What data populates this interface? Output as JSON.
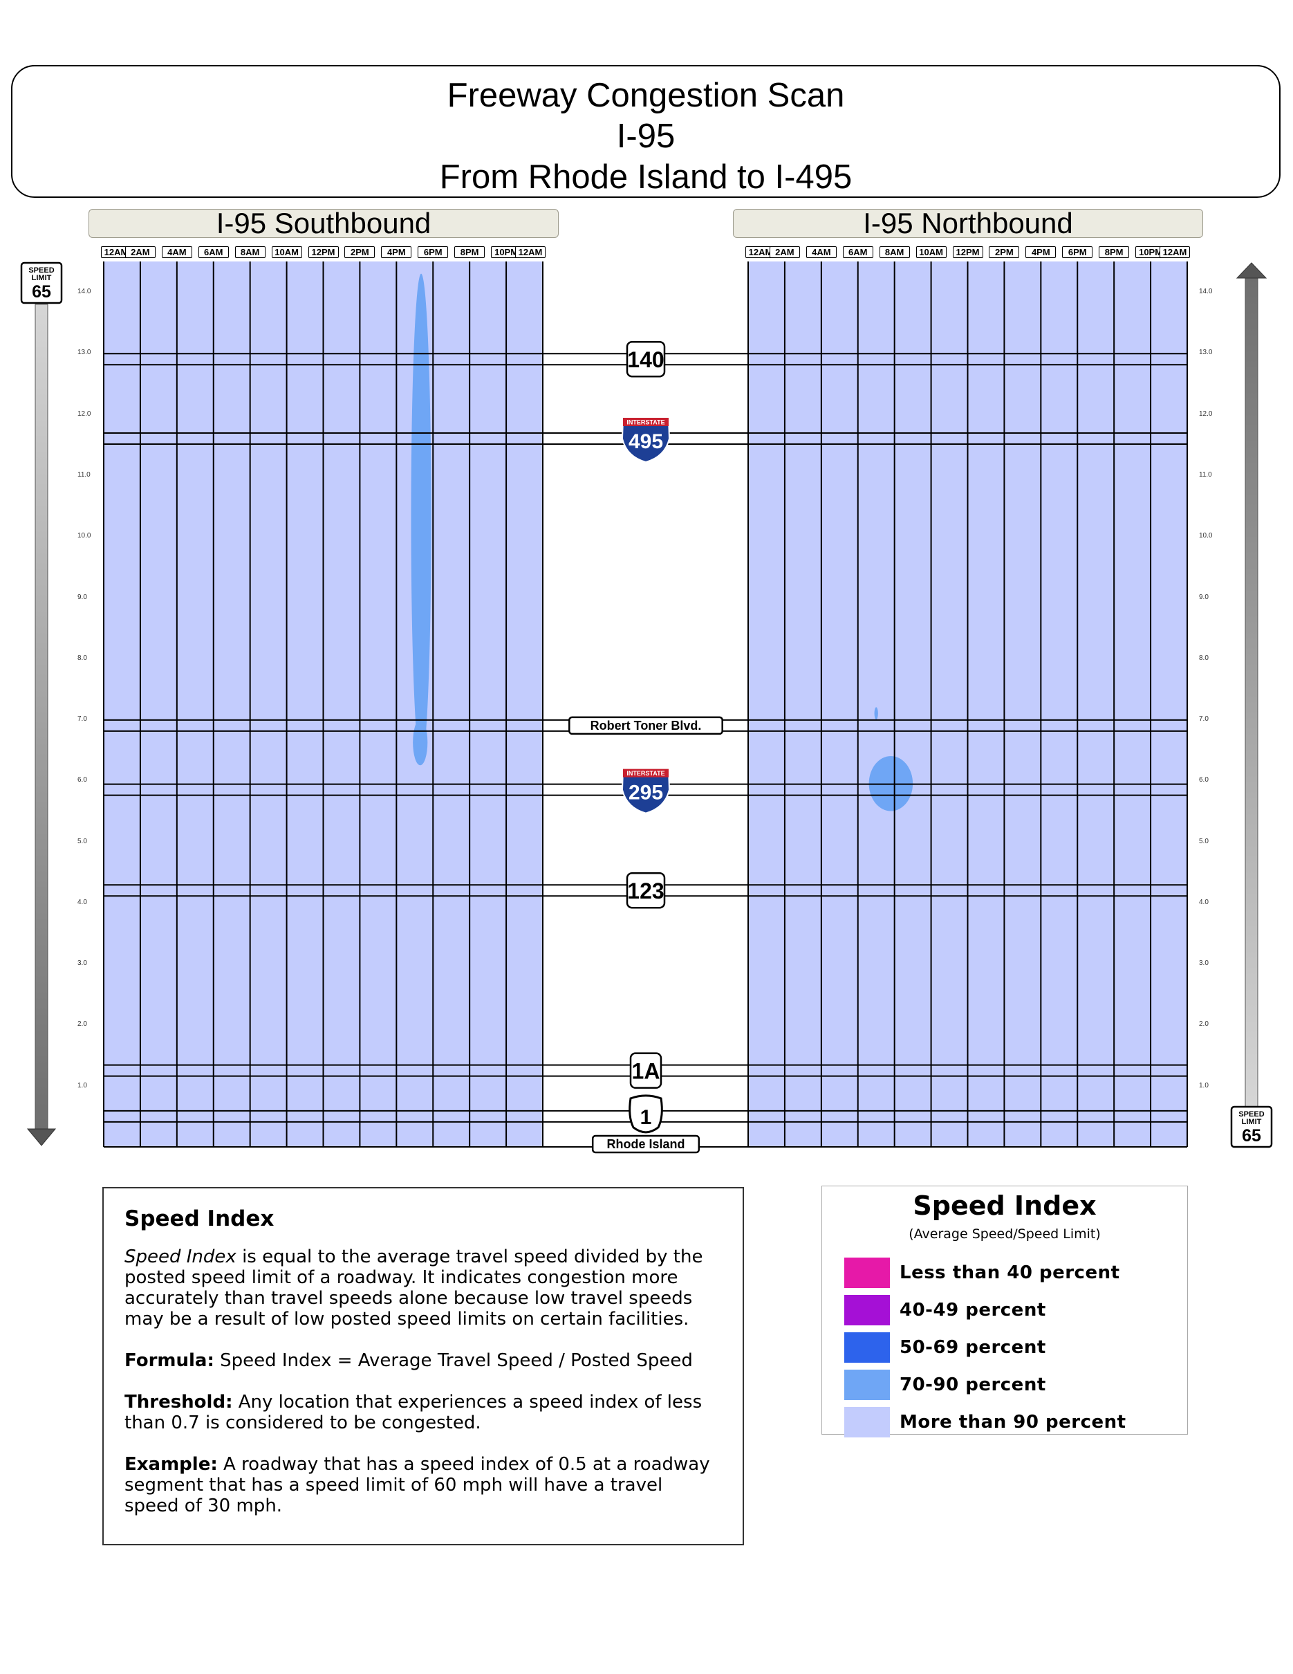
{
  "title": {
    "line1": "Freeway Congestion Scan",
    "line2": "I-95",
    "line3": "From Rhode Island to I-495"
  },
  "panels": {
    "southbound": {
      "header": "I-95 Southbound"
    },
    "northbound": {
      "header": "I-95 Northbound"
    }
  },
  "time_ticks": [
    "12AM",
    "2AM",
    "4AM",
    "6AM",
    "8AM",
    "10AM",
    "12PM",
    "2PM",
    "4PM",
    "6PM",
    "8PM",
    "10PM",
    "12AM"
  ],
  "mile_ticks": [
    "14.0",
    "13.0",
    "12.0",
    "11.0",
    "10.0",
    "9.0",
    "8.0",
    "7.0",
    "6.0",
    "5.0",
    "4.0",
    "3.0",
    "2.0",
    "1.0"
  ],
  "speed_limit_sign": {
    "line1": "SPEED",
    "line2": "LIMIT",
    "value": "65"
  },
  "landmarks": [
    {
      "label": "140",
      "type": "state-route",
      "mile": 12.9
    },
    {
      "label": "495",
      "type": "interstate",
      "banner": "INTERSTATE",
      "mile": 11.6
    },
    {
      "label": "Robert Toner Blvd.",
      "type": "text-sign",
      "mile": 6.9
    },
    {
      "label": "295",
      "type": "interstate",
      "banner": "INTERSTATE",
      "mile": 5.85
    },
    {
      "label": "123",
      "type": "state-route",
      "mile": 4.2
    },
    {
      "label": "1A",
      "type": "state-route",
      "mile": 1.25
    },
    {
      "label": "1",
      "type": "us-route",
      "mile": 0.5
    },
    {
      "label": "Rhode Island",
      "type": "text-sign",
      "mile": 0.0
    }
  ],
  "chart_data": {
    "type": "heatmap",
    "x_label": "",
    "y_label": "",
    "x_range_hours": [
      0,
      24
    ],
    "y_range_miles": [
      0,
      14.5
    ],
    "background_category": "More than 90 percent",
    "series": [
      {
        "name": "I-95 Southbound",
        "congestion_regions": [
          {
            "category": "70-90 percent",
            "start_hour": 16.8,
            "end_hour": 17.9,
            "start_mile": 6.3,
            "end_mile": 14.3
          },
          {
            "category": "70-90 percent",
            "start_hour": 16.9,
            "end_hour": 17.7,
            "start_mile": 6.25,
            "end_mile": 7.0
          }
        ]
      },
      {
        "name": "I-95 Northbound",
        "congestion_regions": [
          {
            "category": "70-90 percent",
            "start_hour": 6.6,
            "end_hour": 9.0,
            "start_mile": 5.5,
            "end_mile": 6.4
          },
          {
            "category": "70-90 percent",
            "start_hour": 6.9,
            "end_hour": 7.1,
            "start_mile": 7.0,
            "end_mile": 7.2
          }
        ]
      }
    ]
  },
  "speed_index_info": {
    "heading": "Speed Index",
    "definition_term": "Speed Index",
    "definition_text": " is equal to the average travel speed divided by the posted speed limit of a roadway. It indicates congestion more accurately than travel speeds alone because low travel speeds may be a result of low posted speed limits on certain facilities.",
    "formula_label": "Formula:",
    "formula_text": " Speed Index = Average Travel Speed / Posted Speed",
    "threshold_label": "Threshold:",
    "threshold_text": " Any location that experiences a speed index of less than 0.7 is considered to be congested.",
    "example_label": "Example:",
    "example_text": " A roadway that has a speed index of 0.5 at a roadway segment that has a speed limit of 60 mph will have a travel speed of 30 mph."
  },
  "speed_index_legend": {
    "title": "Speed Index",
    "subtitle": "(Average Speed/Speed Limit)",
    "items": [
      {
        "label": "Less than 40 percent",
        "color": "#e619a8"
      },
      {
        "label": "40-49 percent",
        "color": "#a510d6"
      },
      {
        "label": "50-69 percent",
        "color": "#2d63ec"
      },
      {
        "label": "70-90 percent",
        "color": "#6fa6f5"
      },
      {
        "label": "More than 90 percent",
        "color": "#c3ccfd"
      }
    ]
  }
}
